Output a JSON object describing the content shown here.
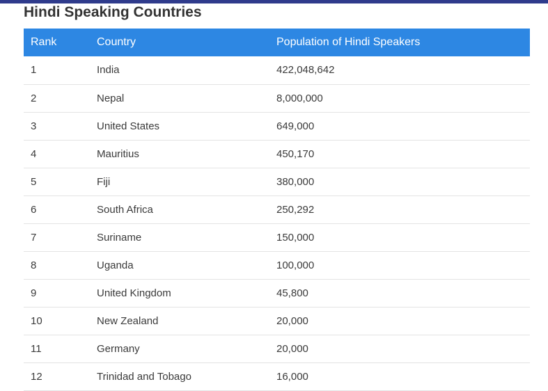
{
  "page": {
    "title": "Hindi Speaking Countries"
  },
  "table": {
    "headers": [
      "Rank",
      "Country",
      "Population of Hindi Speakers"
    ],
    "rows": [
      {
        "rank": "1",
        "country": "India",
        "population": "422,048,642"
      },
      {
        "rank": "2",
        "country": "Nepal",
        "population": "8,000,000"
      },
      {
        "rank": "3",
        "country": "United States",
        "population": "649,000"
      },
      {
        "rank": "4",
        "country": "Mauritius",
        "population": "450,170"
      },
      {
        "rank": "5",
        "country": "Fiji",
        "population": "380,000"
      },
      {
        "rank": "6",
        "country": "South Africa",
        "population": "250,292"
      },
      {
        "rank": "7",
        "country": "Suriname",
        "population": "150,000"
      },
      {
        "rank": "8",
        "country": "Uganda",
        "population": "100,000"
      },
      {
        "rank": "9",
        "country": "United Kingdom",
        "population": "45,800"
      },
      {
        "rank": "10",
        "country": "New Zealand",
        "population": "20,000"
      },
      {
        "rank": "11",
        "country": "Germany",
        "population": "20,000"
      },
      {
        "rank": "12",
        "country": "Trinidad and Tobago",
        "population": "16,000"
      }
    ]
  },
  "colors": {
    "top_bar": "#2f3b8c",
    "header_bg": "#2d87e3",
    "header_text": "#ffffff",
    "row_divider": "#e3e3e3"
  }
}
